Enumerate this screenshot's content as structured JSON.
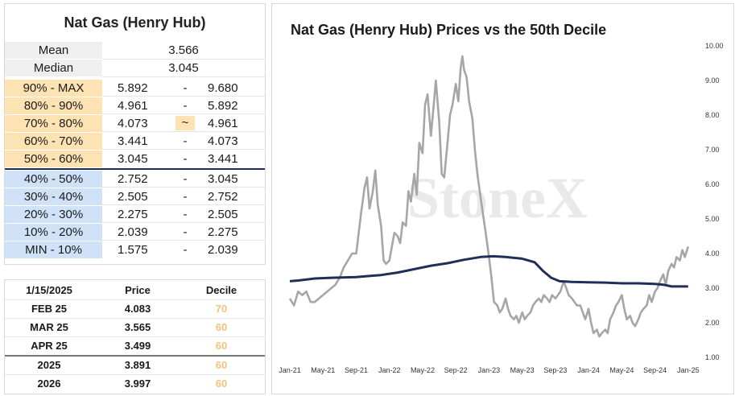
{
  "left_panel": {
    "title": "Nat Gas (Henry Hub)",
    "stats": [
      {
        "label": "Mean",
        "value": "3.566"
      },
      {
        "label": "Median",
        "value": "3.045"
      }
    ],
    "deciles": [
      {
        "label": "90% - MAX",
        "low": "5.892",
        "sep": "-",
        "high": "9.680",
        "group": "upper"
      },
      {
        "label": "80% - 90%",
        "low": "4.961",
        "sep": "-",
        "high": "5.892",
        "group": "upper"
      },
      {
        "label": "70% - 80%",
        "low": "4.073",
        "sep": "~",
        "high": "4.961",
        "group": "upper",
        "highlight": true
      },
      {
        "label": "60% - 70%",
        "low": "3.441",
        "sep": "-",
        "high": "4.073",
        "group": "upper"
      },
      {
        "label": "50% - 60%",
        "low": "3.045",
        "sep": "-",
        "high": "3.441",
        "group": "upper"
      },
      {
        "label": "40% - 50%",
        "low": "2.752",
        "sep": "-",
        "high": "3.045",
        "group": "lower"
      },
      {
        "label": "30% - 40%",
        "low": "2.505",
        "sep": "-",
        "high": "2.752",
        "group": "lower"
      },
      {
        "label": "20% - 30%",
        "low": "2.275",
        "sep": "-",
        "high": "2.505",
        "group": "lower"
      },
      {
        "label": "10% - 20%",
        "low": "2.039",
        "sep": "-",
        "high": "2.275",
        "group": "lower"
      },
      {
        "label": "MIN - 10%",
        "low": "1.575",
        "sep": "-",
        "high": "2.039",
        "group": "lower"
      }
    ]
  },
  "price_table": {
    "headers": [
      "1/15/2025",
      "Price",
      "Decile"
    ],
    "rows": [
      {
        "contract": "FEB 25",
        "price": "4.083",
        "decile": "70"
      },
      {
        "contract": "MAR 25",
        "price": "3.565",
        "decile": "60"
      },
      {
        "contract": "APR 25",
        "price": "3.499",
        "decile": "60"
      },
      {
        "contract": "2025",
        "price": "3.891",
        "decile": "60"
      },
      {
        "contract": "2026",
        "price": "3.997",
        "decile": "60"
      }
    ]
  },
  "colors": {
    "upper_decile": "#fde3b3",
    "lower_decile": "#cfe2f7",
    "price_line": "#a6a6a6",
    "median_line": "#1f2f5a",
    "decile_text": "#f2c27a"
  },
  "watermark": "StoneX",
  "chart_data": {
    "type": "line",
    "title": "Nat Gas (Henry Hub) Prices vs the 50th Decile",
    "x_tick_labels": [
      "Jan-21",
      "May-21",
      "Sep-21",
      "Jan-22",
      "May-22",
      "Sep-22",
      "Jan-23",
      "May-23",
      "Sep-23",
      "Jan-24",
      "May-24",
      "Sep-24",
      "Jan-25"
    ],
    "y_tick_labels": [
      "1.00",
      "2.00",
      "3.00",
      "4.00",
      "5.00",
      "6.00",
      "7.00",
      "8.00",
      "9.00",
      "10.00"
    ],
    "ylim": [
      1,
      10
    ],
    "xlim_months": [
      0,
      48.5
    ],
    "y_axis_position": "right",
    "grid": false,
    "series": [
      {
        "color": "#a6a6a6",
        "points": [
          [
            0,
            2.7
          ],
          [
            0.5,
            2.5
          ],
          [
            1,
            2.9
          ],
          [
            1.5,
            2.8
          ],
          [
            2,
            2.9
          ],
          [
            2.5,
            2.6
          ],
          [
            3,
            2.6
          ],
          [
            3.5,
            2.7
          ],
          [
            4,
            2.8
          ],
          [
            4.5,
            2.9
          ],
          [
            5,
            3.0
          ],
          [
            5.5,
            3.1
          ],
          [
            6,
            3.3
          ],
          [
            6.5,
            3.6
          ],
          [
            7,
            3.8
          ],
          [
            7.5,
            4.0
          ],
          [
            8,
            4.0
          ],
          [
            8.3,
            4.6
          ],
          [
            8.6,
            5.2
          ],
          [
            9,
            5.9
          ],
          [
            9.3,
            6.2
          ],
          [
            9.6,
            5.3
          ],
          [
            10,
            5.8
          ],
          [
            10.3,
            6.4
          ],
          [
            10.6,
            5.4
          ],
          [
            11,
            4.8
          ],
          [
            11.3,
            3.8
          ],
          [
            11.6,
            3.7
          ],
          [
            12,
            3.8
          ],
          [
            12.3,
            4.2
          ],
          [
            12.6,
            4.6
          ],
          [
            13,
            4.5
          ],
          [
            13.3,
            4.3
          ],
          [
            13.6,
            4.9
          ],
          [
            14,
            4.8
          ],
          [
            14.3,
            5.8
          ],
          [
            14.6,
            5.5
          ],
          [
            15,
            6.3
          ],
          [
            15.3,
            5.7
          ],
          [
            15.6,
            7.2
          ],
          [
            16,
            6.9
          ],
          [
            16.3,
            8.3
          ],
          [
            16.6,
            8.6
          ],
          [
            17,
            7.4
          ],
          [
            17.3,
            8.2
          ],
          [
            17.6,
            9.0
          ],
          [
            18,
            7.8
          ],
          [
            18.3,
            6.3
          ],
          [
            18.6,
            6.2
          ],
          [
            19,
            7.2
          ],
          [
            19.3,
            8.0
          ],
          [
            19.6,
            8.3
          ],
          [
            20,
            8.9
          ],
          [
            20.3,
            8.4
          ],
          [
            20.6,
            9.4
          ],
          [
            20.8,
            9.7
          ],
          [
            21,
            9.3
          ],
          [
            21.3,
            9.1
          ],
          [
            21.6,
            8.4
          ],
          [
            22,
            7.9
          ],
          [
            22.3,
            7.0
          ],
          [
            22.6,
            6.3
          ],
          [
            23,
            5.6
          ],
          [
            23.3,
            5.1
          ],
          [
            23.6,
            4.6
          ],
          [
            24,
            3.9
          ],
          [
            24.3,
            3.3
          ],
          [
            24.6,
            2.6
          ],
          [
            25,
            2.5
          ],
          [
            25.3,
            2.3
          ],
          [
            25.6,
            2.4
          ],
          [
            26,
            2.7
          ],
          [
            26.3,
            2.4
          ],
          [
            26.6,
            2.2
          ],
          [
            27,
            2.1
          ],
          [
            27.3,
            2.2
          ],
          [
            27.6,
            2.0
          ],
          [
            28,
            2.3
          ],
          [
            28.3,
            2.1
          ],
          [
            28.6,
            2.2
          ],
          [
            29,
            2.3
          ],
          [
            29.3,
            2.5
          ],
          [
            29.6,
            2.6
          ],
          [
            30,
            2.7
          ],
          [
            30.3,
            2.6
          ],
          [
            30.6,
            2.8
          ],
          [
            31,
            2.7
          ],
          [
            31.3,
            2.6
          ],
          [
            31.6,
            2.8
          ],
          [
            32,
            2.7
          ],
          [
            32.3,
            2.8
          ],
          [
            32.6,
            2.9
          ],
          [
            33,
            3.2
          ],
          [
            33.3,
            3.0
          ],
          [
            33.6,
            2.8
          ],
          [
            34,
            2.7
          ],
          [
            34.3,
            2.6
          ],
          [
            34.6,
            2.5
          ],
          [
            35,
            2.5
          ],
          [
            35.3,
            2.3
          ],
          [
            35.6,
            2.1
          ],
          [
            36,
            2.4
          ],
          [
            36.3,
            2.0
          ],
          [
            36.6,
            1.7
          ],
          [
            37,
            1.8
          ],
          [
            37.3,
            1.6
          ],
          [
            37.6,
            1.7
          ],
          [
            38,
            1.8
          ],
          [
            38.3,
            1.7
          ],
          [
            38.6,
            2.1
          ],
          [
            39,
            2.3
          ],
          [
            39.3,
            2.5
          ],
          [
            39.6,
            2.6
          ],
          [
            40,
            2.8
          ],
          [
            40.3,
            2.4
          ],
          [
            40.6,
            2.1
          ],
          [
            41,
            2.2
          ],
          [
            41.3,
            2.0
          ],
          [
            41.6,
            1.9
          ],
          [
            42,
            2.1
          ],
          [
            42.3,
            2.3
          ],
          [
            42.6,
            2.4
          ],
          [
            43,
            2.5
          ],
          [
            43.3,
            2.8
          ],
          [
            43.6,
            2.6
          ],
          [
            44,
            2.9
          ],
          [
            44.3,
            3.0
          ],
          [
            44.6,
            3.2
          ],
          [
            45,
            3.4
          ],
          [
            45.3,
            3.1
          ],
          [
            45.6,
            3.5
          ],
          [
            46,
            3.7
          ],
          [
            46.3,
            3.6
          ],
          [
            46.6,
            3.9
          ],
          [
            47,
            3.8
          ],
          [
            47.3,
            4.1
          ],
          [
            47.6,
            3.9
          ],
          [
            48,
            4.2
          ]
        ]
      },
      {
        "color": "#1f2f5a",
        "points": [
          [
            0,
            3.2
          ],
          [
            1,
            3.22
          ],
          [
            3,
            3.28
          ],
          [
            5,
            3.3
          ],
          [
            8,
            3.32
          ],
          [
            10,
            3.36
          ],
          [
            11,
            3.38
          ],
          [
            13,
            3.45
          ],
          [
            15,
            3.55
          ],
          [
            17,
            3.65
          ],
          [
            19,
            3.72
          ],
          [
            21,
            3.82
          ],
          [
            23,
            3.9
          ],
          [
            24.5,
            3.92
          ],
          [
            26,
            3.9
          ],
          [
            28,
            3.85
          ],
          [
            29.5,
            3.75
          ],
          [
            30.5,
            3.5
          ],
          [
            31.5,
            3.3
          ],
          [
            32.5,
            3.2
          ],
          [
            34,
            3.18
          ],
          [
            36,
            3.17
          ],
          [
            38,
            3.16
          ],
          [
            40,
            3.14
          ],
          [
            42,
            3.14
          ],
          [
            44,
            3.12
          ],
          [
            45,
            3.1
          ],
          [
            46,
            3.05
          ],
          [
            47,
            3.05
          ],
          [
            48,
            3.05
          ]
        ]
      }
    ]
  }
}
